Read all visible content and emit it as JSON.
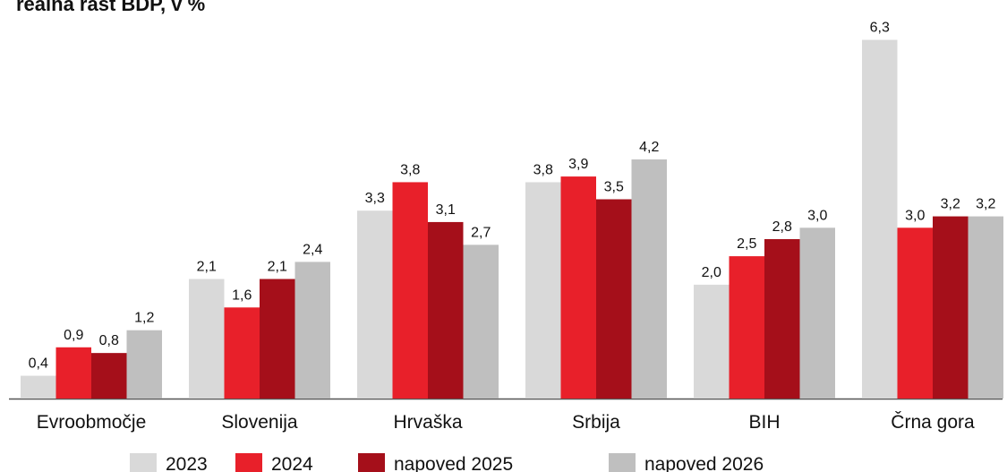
{
  "chart_data": {
    "type": "bar",
    "title": "realna rast BDP, v %",
    "categories": [
      "Evroobmočje",
      "Slovenija",
      "Hrvaška",
      "Srbija",
      "BIH",
      "Črna gora"
    ],
    "series": [
      {
        "name": "2023",
        "color": "#d9d9d9",
        "values": [
          0.4,
          2.1,
          3.3,
          3.8,
          2.0,
          6.3
        ],
        "value_labels": [
          "0,4",
          "2,1",
          "3,3",
          "3,8",
          "2,0",
          "6,3"
        ]
      },
      {
        "name": "2024",
        "color": "#e8202a",
        "values": [
          0.9,
          1.6,
          3.8,
          3.9,
          2.5,
          3.0
        ],
        "value_labels": [
          "0,9",
          "1,6",
          "3,8",
          "3,9",
          "2,5",
          "3,0"
        ]
      },
      {
        "name": "napoved 2025",
        "color": "#a50f1a",
        "values": [
          0.8,
          2.1,
          3.1,
          3.5,
          2.8,
          3.2
        ],
        "value_labels": [
          "0,8",
          "2,1",
          "3,1",
          "3,5",
          "2,8",
          "3,2"
        ]
      },
      {
        "name": "napoved 2026",
        "color": "#bfbfbf",
        "values": [
          1.2,
          2.4,
          2.7,
          4.2,
          3.0,
          3.2
        ],
        "value_labels": [
          "1,2",
          "2,4",
          "2,7",
          "4,2",
          "3,0",
          "3,2"
        ]
      }
    ],
    "ylim": [
      0,
      7
    ],
    "legend": "bottom"
  }
}
